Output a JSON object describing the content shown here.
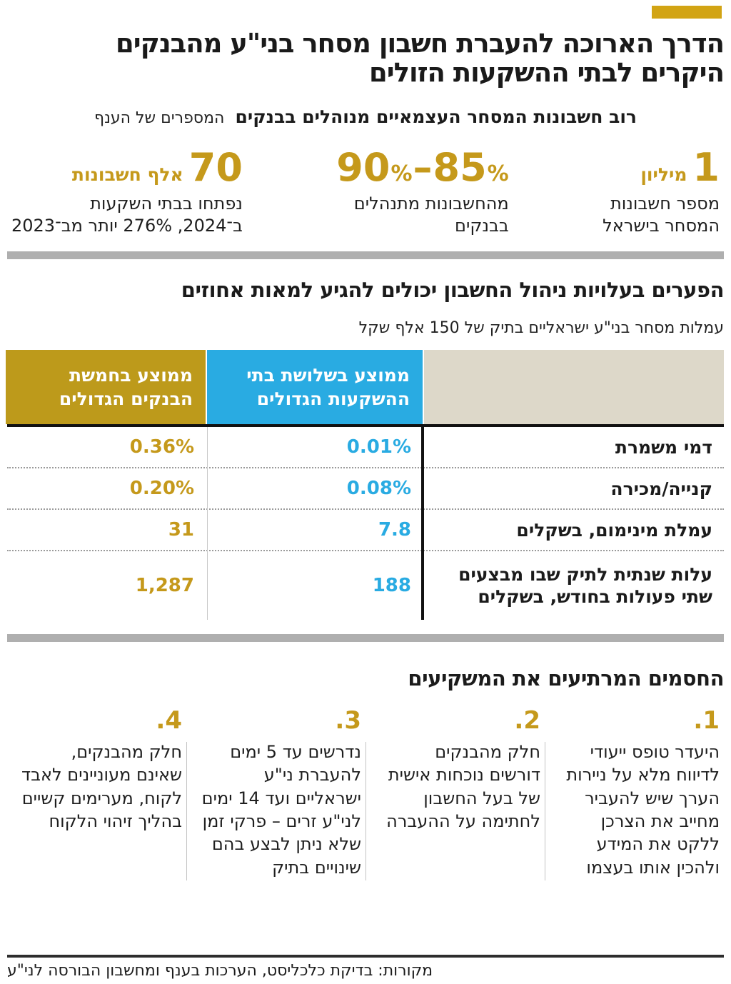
{
  "colors": {
    "gold": "#C5991B",
    "gold_header": "#BD9A1B",
    "gold_tag": "#D2A414",
    "blue": "#29ABE2",
    "beige": "#DDD8C9",
    "gray_bar": "#AFAFAF"
  },
  "header": {
    "title_line1": "הדרך הארוכה להעברת חשבון מסחר בני\"ע מהבנקים",
    "title_line2": "היקרים לבתי ההשקעות הזולים",
    "kicker_bold": "רוב חשבונות המסחר העצמאיים מנוהלים בבנקים",
    "kicker_light": "המספרים של הענף"
  },
  "stats": [
    {
      "value": "1",
      "suffix": "מיליון",
      "desc_line1": "מספר חשבונות",
      "desc_line2": "המסחר בישראל"
    },
    {
      "parts": [
        "90",
        "%",
        "–",
        "85",
        "%"
      ],
      "desc_line1": "מהחשבונות מתנהלים",
      "desc_line2": "בבנקים"
    },
    {
      "value": "70",
      "suffix": "אלף חשבונות",
      "desc_line1": "נפתחו בבתי השקעות",
      "desc_line2": "ב־2024, 276% יותר מב־2023"
    }
  ],
  "fees": {
    "title": "הפערים בעלויות ניהול החשבון יכולים להגיע למאות אחוזים",
    "subtitle": "עמלות מסחר בני\"ע ישראליים בתיק של 150 אלף שקל",
    "col_inv_line1": "ממוצע בשלושת בתי",
    "col_inv_line2": "ההשקעות הגדולים",
    "col_bank_line1": "ממוצע בחמשת",
    "col_bank_line2": "הבנקים הגדולים",
    "rows": [
      {
        "label": "דמי משמרת",
        "inv": "0.01%",
        "bank": "0.36%"
      },
      {
        "label": "קנייה/מכירה",
        "inv": "0.08%",
        "bank": "0.20%"
      },
      {
        "label": "עמלת מינימום, בשקלים",
        "inv": "7.8",
        "bank": "31"
      },
      {
        "label": "עלות שנתית לתיק שבו מבצעים שתי פעולות בחודש, בשקלים",
        "inv": "188",
        "bank": "1,287"
      }
    ]
  },
  "barriers": {
    "title": "החסמים המרתיעים את המשקיעים",
    "items": [
      {
        "num": "1.",
        "text": "היעדר טופס ייעודי לדיווח מלא על ניירות הערך שיש להעביר מחייב את הצרכן ללקט את המידע ולהכין אותו בעצמו"
      },
      {
        "num": "2.",
        "text": "חלק מהבנקים דורשים נוכחות אישית של בעל החשבון לחתימה על ההעברה"
      },
      {
        "num": "3.",
        "text": "נדרשים עד 5 ימים להעברת ני\"ע ישראליים ועד 14 ימים לני\"ע זרים – פרקי זמן שלא ניתן לבצע בהם שינויים בתיק"
      },
      {
        "num": "4.",
        "text": "חלק מהבנקים, שאינם מעוניינים לאבד לקוח, מערימים קשיים בהליך זיהוי הלקוח"
      }
    ]
  },
  "footer": {
    "source": "מקורות: בדיקת כלכליסט, הערכות בענף ומחשבון הבורסה לני\"ע"
  },
  "chart_data": [
    {
      "type": "table",
      "title": "הפערים בעלויות ניהול החשבון יכולים להגיע למאות אחוזים",
      "subtitle": "עמלות מסחר בני\"ע ישראליים בתיק של 150 אלף שקל",
      "columns": [
        "",
        "ממוצע בשלושת בתי ההשקעות הגדולים",
        "ממוצע בחמשת הבנקים הגדולים"
      ],
      "rows": [
        [
          "דמי משמרת",
          "0.01%",
          "0.36%"
        ],
        [
          "קנייה/מכירה",
          "0.08%",
          "0.20%"
        ],
        [
          "עמלת מינימום, בשקלים",
          "7.8",
          "31"
        ],
        [
          "עלות שנתית לתיק שבו מבצעים שתי פעולות בחודש, בשקלים",
          "188",
          "1,287"
        ]
      ]
    },
    {
      "type": "table",
      "title": "המספרים של הענף",
      "rows": [
        [
          "מספר חשבונות המסחר בישראל",
          "1 מיליון"
        ],
        [
          "מהחשבונות מתנהלים בבנקים",
          "85%-90%"
        ],
        [
          "חשבונות נפתחו בבתי השקעות ב־2024, 276% יותר מב־2023",
          "70 אלף"
        ]
      ]
    }
  ]
}
